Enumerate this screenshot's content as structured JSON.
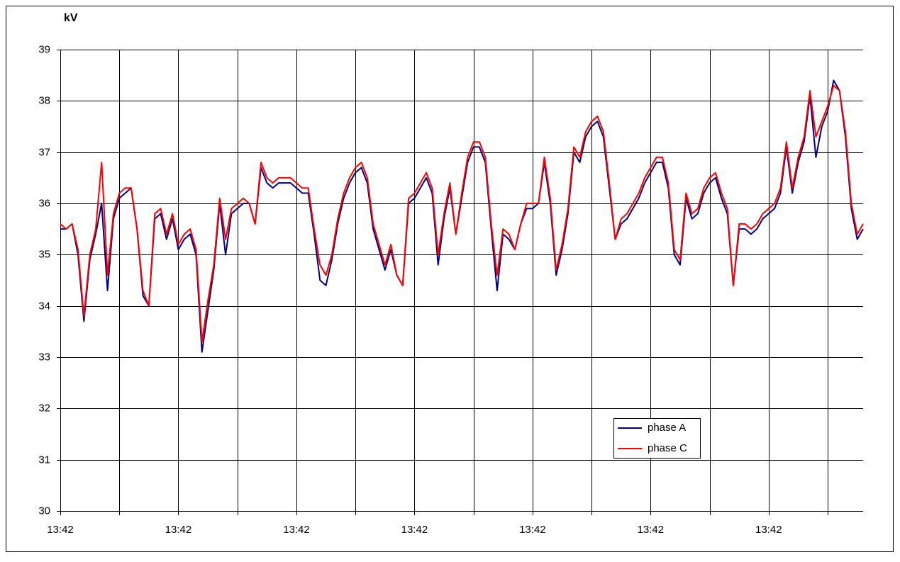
{
  "chart_data": {
    "type": "line",
    "y_label": "kV",
    "categories": [
      "13:42",
      null,
      null,
      null,
      null,
      null,
      null,
      null,
      null,
      null,
      null,
      null,
      null,
      null,
      null,
      null,
      null,
      null,
      null,
      null,
      "13:42",
      null,
      null,
      null,
      null,
      null,
      null,
      null,
      null,
      null,
      null,
      null,
      null,
      null,
      null,
      null,
      null,
      null,
      null,
      null,
      "13:42",
      null,
      null,
      null,
      null,
      null,
      null,
      null,
      null,
      null,
      null,
      null,
      null,
      null,
      null,
      null,
      null,
      null,
      null,
      null,
      "13:42",
      null,
      null,
      null,
      null,
      null,
      null,
      null,
      null,
      null,
      null,
      null,
      null,
      null,
      null,
      null,
      null,
      null,
      null,
      null,
      "13:42",
      null,
      null,
      null,
      null,
      null,
      null,
      null,
      null,
      null,
      null,
      null,
      null,
      null,
      null,
      null,
      null,
      null,
      null,
      null,
      "13:42",
      null,
      null,
      null,
      null,
      null,
      null,
      null,
      null,
      null,
      null,
      null,
      null,
      null,
      null,
      null,
      null,
      null,
      null,
      null,
      "13:42",
      null,
      null,
      null,
      null,
      null,
      null,
      null,
      null,
      null,
      null,
      null,
      null,
      null,
      null,
      null,
      null
    ],
    "series": [
      {
        "name": "phase A",
        "color": "#000080",
        "values": [
          35.5,
          35.5,
          35.6,
          35.0,
          33.7,
          34.9,
          35.4,
          36.0,
          34.3,
          35.7,
          36.1,
          36.2,
          36.3,
          35.5,
          34.2,
          34.0,
          35.7,
          35.8,
          35.3,
          35.7,
          35.1,
          35.3,
          35.4,
          35.0,
          33.1,
          33.9,
          34.7,
          36.0,
          35.0,
          35.8,
          35.9,
          36.0,
          36.0,
          35.6,
          36.7,
          36.4,
          36.3,
          36.4,
          36.4,
          36.4,
          36.3,
          36.2,
          36.2,
          35.4,
          34.5,
          34.4,
          34.9,
          35.6,
          36.1,
          36.4,
          36.6,
          36.7,
          36.4,
          35.5,
          35.1,
          34.7,
          35.1,
          34.6,
          34.4,
          36.0,
          36.1,
          36.3,
          36.5,
          36.2,
          34.8,
          35.7,
          36.3,
          35.4,
          36.1,
          36.8,
          37.1,
          37.1,
          36.8,
          35.5,
          34.3,
          35.4,
          35.3,
          35.1,
          35.6,
          35.9,
          35.9,
          36.0,
          36.8,
          36.0,
          34.6,
          35.1,
          35.8,
          37.0,
          36.8,
          37.3,
          37.5,
          37.6,
          37.3,
          36.3,
          35.3,
          35.6,
          35.7,
          35.9,
          36.1,
          36.4,
          36.6,
          36.8,
          36.8,
          36.3,
          35.0,
          34.8,
          36.1,
          35.7,
          35.8,
          36.2,
          36.4,
          36.5,
          36.1,
          35.8,
          34.4,
          35.5,
          35.5,
          35.4,
          35.5,
          35.7,
          35.8,
          35.9,
          36.2,
          37.1,
          36.2,
          36.8,
          37.2,
          38.1,
          36.9,
          37.5,
          37.8,
          38.4,
          38.2,
          37.3,
          35.9,
          35.3,
          35.5
        ]
      },
      {
        "name": "phase C",
        "color": "#ff0000",
        "values": [
          35.6,
          35.5,
          35.6,
          35.1,
          33.8,
          35.0,
          35.5,
          36.8,
          34.6,
          35.8,
          36.2,
          36.3,
          36.3,
          35.5,
          34.3,
          34.0,
          35.8,
          35.9,
          35.4,
          35.8,
          35.2,
          35.4,
          35.5,
          35.1,
          33.3,
          34.1,
          34.8,
          36.1,
          35.3,
          35.9,
          36.0,
          36.1,
          36.0,
          35.6,
          36.8,
          36.5,
          36.4,
          36.5,
          36.5,
          36.5,
          36.4,
          36.3,
          36.3,
          35.5,
          34.8,
          34.6,
          35.0,
          35.7,
          36.2,
          36.5,
          36.7,
          36.8,
          36.5,
          35.6,
          35.2,
          34.8,
          35.2,
          34.6,
          34.4,
          36.1,
          36.2,
          36.4,
          36.6,
          36.3,
          35.0,
          35.8,
          36.4,
          35.4,
          36.2,
          36.9,
          37.2,
          37.2,
          36.9,
          35.6,
          34.6,
          35.5,
          35.4,
          35.1,
          35.6,
          36.0,
          36.0,
          36.0,
          36.9,
          36.1,
          34.7,
          35.2,
          35.9,
          37.1,
          36.9,
          37.4,
          37.6,
          37.7,
          37.4,
          36.4,
          35.3,
          35.7,
          35.8,
          36.0,
          36.2,
          36.5,
          36.7,
          36.9,
          36.9,
          36.4,
          35.1,
          34.9,
          36.2,
          35.8,
          35.9,
          36.3,
          36.5,
          36.6,
          36.2,
          35.9,
          34.4,
          35.6,
          35.6,
          35.5,
          35.6,
          35.8,
          35.9,
          36.0,
          36.3,
          37.2,
          36.3,
          36.9,
          37.3,
          38.2,
          37.3,
          37.6,
          37.9,
          38.3,
          38.2,
          37.4,
          36.0,
          35.4,
          35.6
        ]
      }
    ],
    "ylim": [
      30,
      39
    ],
    "yticks": [
      30,
      31,
      32,
      33,
      34,
      35,
      36,
      37,
      38,
      39
    ],
    "grid": true,
    "legend": "lower right"
  }
}
